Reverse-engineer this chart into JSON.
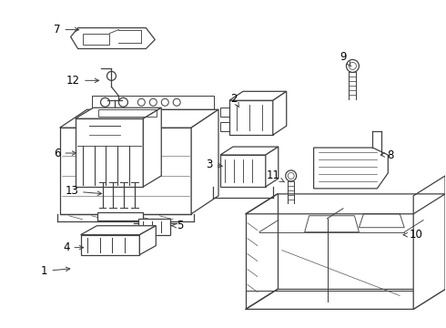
{
  "bg_color": "#ffffff",
  "line_color": "#404040",
  "label_color": "#000000",
  "lw": 0.9
}
